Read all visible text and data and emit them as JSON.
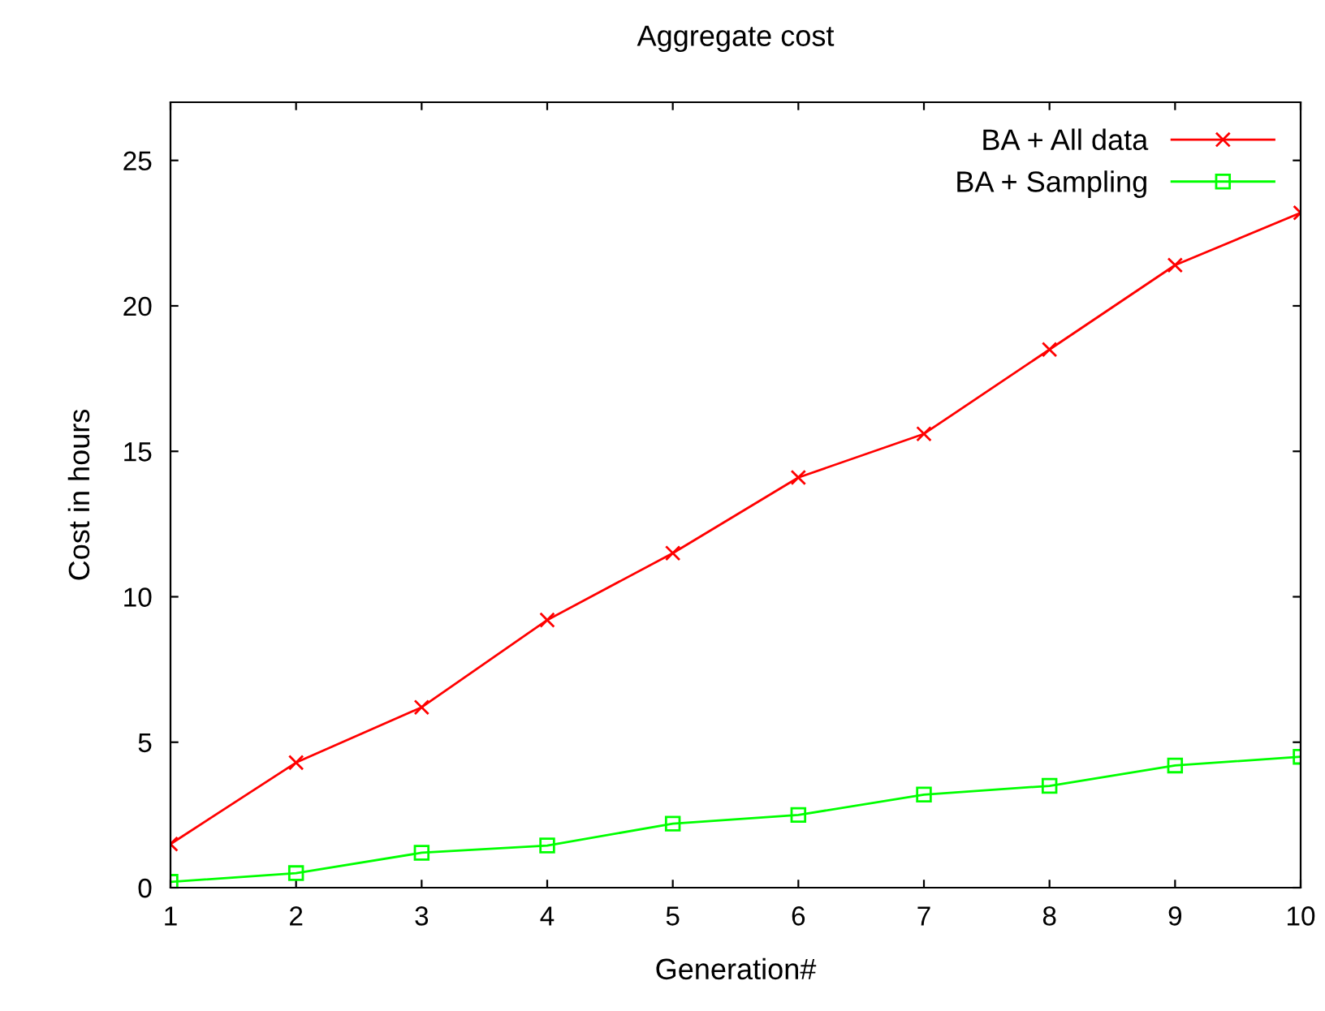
{
  "chart_data": {
    "type": "line",
    "title": "Aggregate cost",
    "xlabel": "Generation#",
    "ylabel": "Cost in hours",
    "x": [
      1,
      2,
      3,
      4,
      5,
      6,
      7,
      8,
      9,
      10
    ],
    "series": [
      {
        "name": "BA + All data",
        "color": "#ff0000",
        "marker": "cross",
        "values": [
          1.5,
          4.3,
          6.2,
          9.2,
          11.5,
          14.1,
          15.6,
          18.5,
          21.4,
          23.2
        ]
      },
      {
        "name": "BA + Sampling",
        "color": "#00ff00",
        "marker": "square",
        "values": [
          0.2,
          0.5,
          1.2,
          1.45,
          2.2,
          2.5,
          3.2,
          3.5,
          4.2,
          4.5
        ]
      }
    ],
    "xlim": [
      1,
      10
    ],
    "xticks": [
      1,
      2,
      3,
      4,
      5,
      6,
      7,
      8,
      9,
      10
    ],
    "ylim": [
      0,
      27
    ],
    "yticks": [
      0,
      5,
      10,
      15,
      20,
      25
    ],
    "grid": false,
    "legend": "top right",
    "line_style": "solid"
  }
}
